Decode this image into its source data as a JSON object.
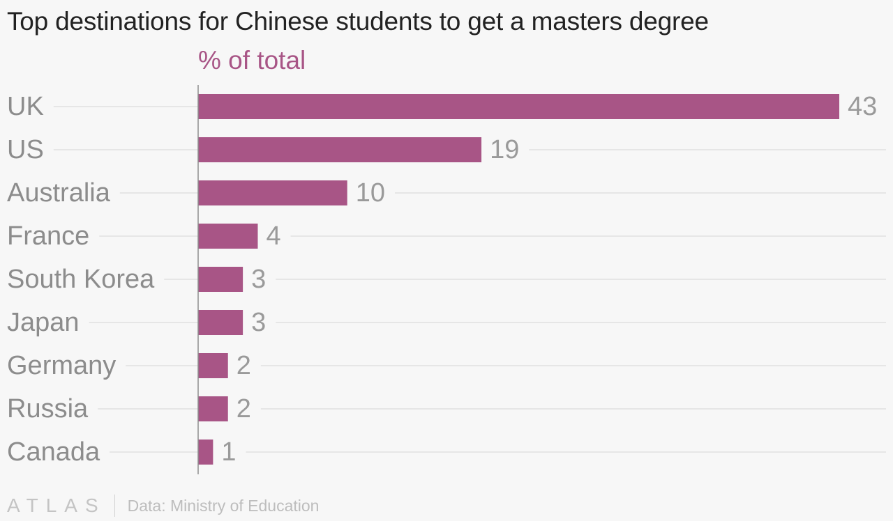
{
  "title": "Top destinations for Chinese students to get a masters degree",
  "footer": {
    "logo_text": "ATLAS",
    "source": "Data: Ministry of Education"
  },
  "colors": {
    "bar": "#a85586",
    "unit_label": "#a85586",
    "category_text": "#8c8c8c",
    "value_text": "#9a9a9a",
    "gridline": "#e6e6e6",
    "baseline": "#8e8e8e",
    "background": "#f7f7f7"
  },
  "chart_data": {
    "type": "bar",
    "orientation": "horizontal",
    "unit_label": "% of total",
    "categories": [
      "UK",
      "US",
      "Australia",
      "France",
      "South Korea",
      "Japan",
      "Germany",
      "Russia",
      "Canada"
    ],
    "values": [
      43,
      19,
      10,
      4,
      3,
      3,
      2,
      2,
      1
    ],
    "xlim": [
      0,
      43
    ],
    "grid": true,
    "legend": "none",
    "data_labels": true
  }
}
